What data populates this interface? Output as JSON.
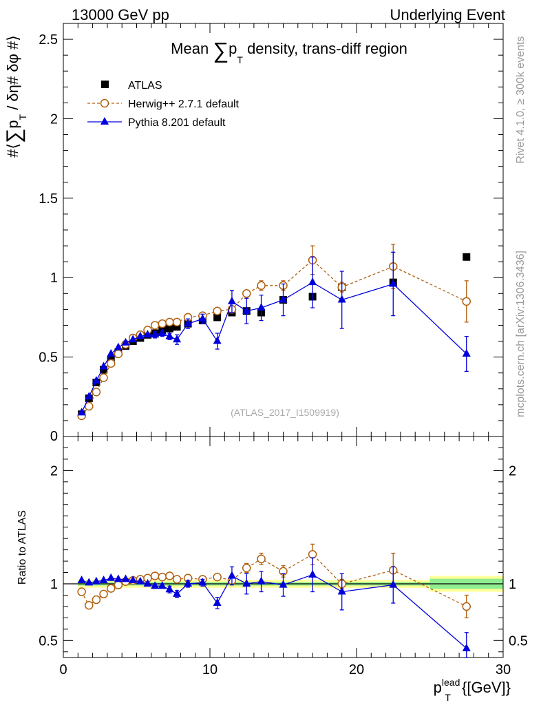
{
  "header": {
    "left": "13000 GeV pp",
    "right": "Underlying Event"
  },
  "side": {
    "rivet": "Rivet 4.1.0, ≥ 300k events",
    "mcplots": "mcplots.cern.ch [arXiv:1306.3436]"
  },
  "watermark": "(ATLAS_2017_I1509919)",
  "colors": {
    "atlas": "#000000",
    "herwig": "#b05f0e",
    "pythia": "#0000dd",
    "band_inner": "#90ee90",
    "band_outer": "#ffff99"
  },
  "chart_data": [
    {
      "type": "scatter",
      "title_parts": {
        "pre": "Mean ",
        "sigma": "∑",
        "p": "p",
        "sub": "T",
        "post": " density, trans-diff region"
      },
      "ylabel_parts": {
        "open": "#⟨",
        "sigma": "∑",
        "p": "p",
        "sub": "T",
        "rest": " / δη# δφ #⟩"
      },
      "xlim": [
        0,
        30
      ],
      "ylim": [
        0,
        2.6
      ],
      "yticks": [
        0.5,
        1,
        1.5,
        2,
        2.5
      ],
      "ytick_labels": [
        "0.5",
        "1",
        "1.5",
        "2",
        "2.5"
      ],
      "ylabel_bottom": "0",
      "legend": {
        "position": "top-left",
        "entries": [
          "ATLAS",
          "Herwig++ 2.7.1 default",
          "Pythia 8.201 default"
        ]
      },
      "series": [
        {
          "name": "ATLAS",
          "marker": "square",
          "x": [
            1.25,
            1.75,
            2.25,
            2.75,
            3.25,
            3.75,
            4.25,
            4.75,
            5.25,
            5.75,
            6.25,
            6.75,
            7.25,
            7.75,
            8.5,
            9.5,
            10.5,
            11.5,
            12.5,
            13.5,
            15,
            17,
            19,
            22.5,
            27.5
          ],
          "y": [
            0.14,
            0.24,
            0.34,
            0.42,
            0.48,
            0.53,
            0.57,
            0.6,
            0.62,
            0.64,
            0.65,
            0.67,
            0.68,
            0.69,
            0.71,
            0.73,
            0.75,
            0.78,
            0.79,
            0.78,
            0.86,
            0.88,
            0.94,
            0.97,
            1.13
          ]
        },
        {
          "name": "Herwig++ 2.7.1 default",
          "marker": "open-circle",
          "line": "dashed",
          "x": [
            1.25,
            1.75,
            2.25,
            2.75,
            3.25,
            3.75,
            4.25,
            4.75,
            5.25,
            5.75,
            6.25,
            6.75,
            7.25,
            7.75,
            8.5,
            9.5,
            10.5,
            11.5,
            12.5,
            13.5,
            15,
            17,
            19,
            22.5,
            27.5
          ],
          "y": [
            0.13,
            0.19,
            0.28,
            0.37,
            0.46,
            0.52,
            0.58,
            0.62,
            0.64,
            0.67,
            0.7,
            0.71,
            0.72,
            0.72,
            0.75,
            0.76,
            0.79,
            0.8,
            0.9,
            0.95,
            0.95,
            1.11,
            0.94,
            1.07,
            0.85
          ],
          "yerr": [
            0,
            0,
            0,
            0,
            0,
            0,
            0,
            0,
            0,
            0,
            0,
            0,
            0,
            0,
            0,
            0,
            0,
            0,
            0,
            0.03,
            0.03,
            0.09,
            0.03,
            0.14,
            0.13
          ]
        },
        {
          "name": "Pythia 8.201 default",
          "marker": "triangle",
          "line": "solid",
          "x": [
            1.25,
            1.75,
            2.25,
            2.75,
            3.25,
            3.75,
            4.25,
            4.75,
            5.25,
            5.75,
            6.25,
            6.75,
            7.25,
            7.75,
            8.5,
            9.5,
            10.5,
            11.5,
            12.5,
            13.5,
            15,
            17,
            19,
            22.5,
            27.5
          ],
          "y": [
            0.15,
            0.25,
            0.35,
            0.44,
            0.52,
            0.56,
            0.59,
            0.61,
            0.63,
            0.64,
            0.64,
            0.65,
            0.63,
            0.61,
            0.71,
            0.74,
            0.6,
            0.85,
            0.79,
            0.81,
            0.86,
            0.97,
            0.86,
            0.96,
            0.52
          ],
          "yerr": [
            0,
            0,
            0,
            0,
            0,
            0,
            0,
            0,
            0,
            0,
            0.02,
            0.02,
            0.02,
            0.03,
            0.03,
            0.03,
            0.05,
            0.07,
            0.08,
            0.08,
            0.1,
            0.16,
            0.18,
            0.2,
            0.11
          ]
        }
      ]
    },
    {
      "type": "scatter",
      "ylabel": "Ratio to ATLAS",
      "xlabel_parts": {
        "p": "p",
        "sup": "lead",
        "sub": "T",
        "unit": " {[GeV]}"
      },
      "xlim": [
        0,
        30
      ],
      "ylim": [
        0.35,
        2.3
      ],
      "xticks": [
        0,
        10,
        20,
        30
      ],
      "xtick_labels": [
        "0",
        "10",
        "20",
        "30"
      ],
      "yticks": [
        0.5,
        1,
        2
      ],
      "ytick_labels": [
        "0.5",
        "1",
        "2"
      ],
      "bands": [
        {
          "x0": 1,
          "x1": 25,
          "inner": 0.015,
          "outer": 0.035
        },
        {
          "x0": 25,
          "x1": 30,
          "inner": 0.045,
          "outer": 0.07
        }
      ],
      "series": [
        {
          "name": "Herwig++ 2.7.1 default",
          "marker": "open-circle",
          "line": "dashed",
          "x": [
            1.25,
            1.75,
            2.25,
            2.75,
            3.25,
            3.75,
            4.25,
            4.75,
            5.25,
            5.75,
            6.25,
            6.75,
            7.25,
            7.75,
            8.5,
            9.5,
            10.5,
            11.5,
            12.5,
            13.5,
            15,
            17,
            19,
            22.5,
            27.5
          ],
          "y": [
            0.93,
            0.81,
            0.86,
            0.91,
            0.96,
            0.99,
            1.02,
            1.03,
            1.04,
            1.05,
            1.07,
            1.06,
            1.07,
            1.04,
            1.05,
            1.04,
            1.06,
            1.03,
            1.14,
            1.22,
            1.11,
            1.26,
            1.0,
            1.12,
            0.8
          ],
          "yerr": [
            0,
            0,
            0,
            0,
            0,
            0,
            0,
            0,
            0,
            0,
            0,
            0,
            0,
            0,
            0,
            0,
            0,
            0,
            0.04,
            0.05,
            0.05,
            0.09,
            0.04,
            0.15,
            0.1
          ]
        },
        {
          "name": "Pythia 8.201 default",
          "marker": "triangle",
          "line": "solid",
          "x": [
            1.25,
            1.75,
            2.25,
            2.75,
            3.25,
            3.75,
            4.25,
            4.75,
            5.25,
            5.75,
            6.25,
            6.75,
            7.25,
            7.75,
            8.5,
            9.5,
            10.5,
            11.5,
            12.5,
            13.5,
            15,
            17,
            19,
            22.5,
            27.5
          ],
          "y": [
            1.03,
            1.01,
            1.02,
            1.03,
            1.05,
            1.04,
            1.04,
            1.03,
            1.02,
            1.0,
            0.98,
            0.98,
            0.95,
            0.91,
            1.0,
            1.01,
            0.83,
            1.07,
            1.0,
            1.02,
            0.99,
            1.08,
            0.93,
            0.99,
            0.43
          ],
          "yerr": [
            0,
            0,
            0,
            0,
            0,
            0,
            0,
            0,
            0,
            0,
            0.02,
            0.02,
            0.03,
            0.03,
            0.03,
            0.03,
            0.05,
            0.08,
            0.09,
            0.09,
            0.1,
            0.15,
            0.16,
            0.16,
            0.14
          ]
        }
      ]
    }
  ]
}
